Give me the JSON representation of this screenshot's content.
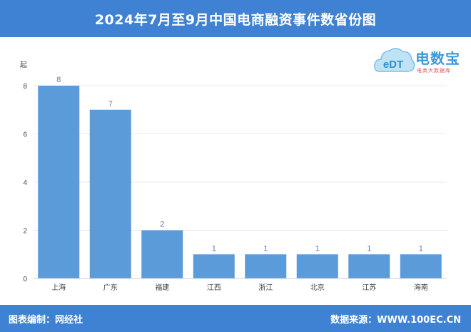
{
  "header": {
    "title": "2024年7月至9月中国电商融资事件数省份图"
  },
  "logo": {
    "icon_text": "eDT",
    "name": "电数宝",
    "tagline": "电商大数据库"
  },
  "footer": {
    "left": "图表编制：网经社",
    "right": "数据来源：WWW.100EC.CN"
  },
  "colors": {
    "bar": "#5b9bd9",
    "header_bg": "#3f82d4",
    "value_label": "#5b7fa6",
    "grid": "#e6eaef"
  },
  "chart_data": {
    "type": "bar",
    "title": "2024年7月至9月中国电商融资事件数省份图",
    "ylabel": "起",
    "xlabel": "",
    "categories": [
      "上海",
      "广东",
      "福建",
      "江西",
      "浙江",
      "北京",
      "江苏",
      "海南"
    ],
    "values": [
      8,
      7,
      2,
      1,
      1,
      1,
      1,
      1
    ],
    "ylim": [
      0,
      8
    ],
    "yticks": [
      0,
      2,
      4,
      6,
      8
    ],
    "grid": true,
    "data_labels": true,
    "legend": "none"
  }
}
